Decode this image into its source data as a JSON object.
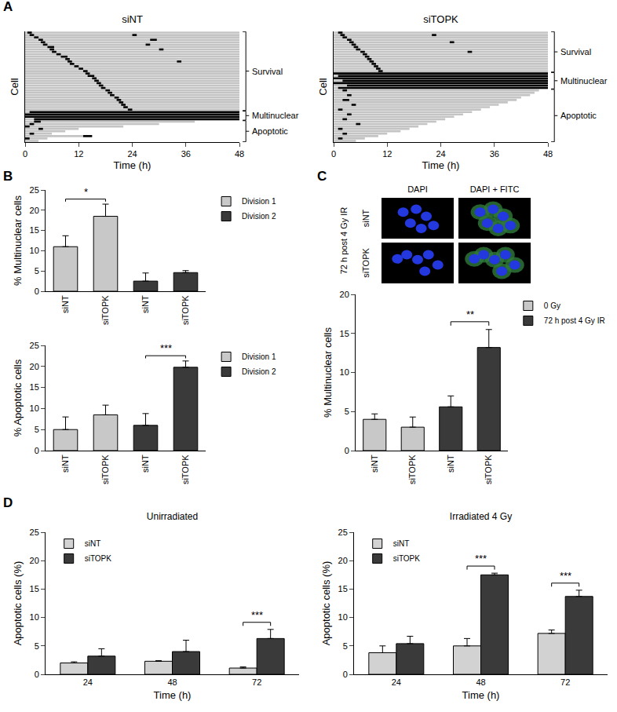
{
  "chart_data": [
    {
      "type": "timeline",
      "panel": "A",
      "title": "siNT",
      "xlabel": "Time (h)",
      "ylabel": "Cell",
      "xlim": [
        0,
        48
      ],
      "xticks": [
        0,
        12,
        24,
        36,
        48
      ],
      "grid": false,
      "tick_labels": "x",
      "color": "#c4c4c4",
      "groups": [
        {
          "label": "Survival",
          "from": 0,
          "to": 32
        },
        {
          "label": "Multinuclear",
          "from": 33,
          "to": 36
        },
        {
          "label": "Apoptotic",
          "from": 37,
          "to": 45
        }
      ],
      "cells": [
        {
          "end": 48,
          "marks": [
            [
              0.5,
              1.5
            ]
          ]
        },
        {
          "end": 48,
          "marks": [
            [
              1,
              2
            ],
            [
              24,
              25
            ]
          ]
        },
        {
          "end": 48,
          "marks": [
            [
              2,
              3
            ]
          ]
        },
        {
          "end": 48,
          "marks": [
            [
              3,
              4
            ],
            [
              28,
              29.5
            ]
          ]
        },
        {
          "end": 48,
          "marks": [
            [
              3.5,
              4.5
            ]
          ]
        },
        {
          "end": 48,
          "marks": [
            [
              4,
              5
            ],
            [
              27,
              28
            ]
          ]
        },
        {
          "end": 48,
          "marks": [
            [
              5,
              6.5
            ]
          ]
        },
        {
          "end": 48,
          "marks": [
            [
              5.5,
              6.5
            ],
            [
              30,
              31
            ]
          ]
        },
        {
          "end": 48,
          "marks": [
            [
              6,
              7
            ]
          ]
        },
        {
          "end": 48,
          "marks": [
            [
              7,
              8
            ]
          ]
        },
        {
          "end": 48,
          "marks": [
            [
              8,
              9.5
            ]
          ]
        },
        {
          "end": 48,
          "marks": [
            [
              9,
              10
            ]
          ]
        },
        {
          "end": 48,
          "marks": [
            [
              9.5,
              10.5
            ],
            [
              34,
              35
            ]
          ]
        },
        {
          "end": 48,
          "marks": [
            [
              10,
              11
            ]
          ]
        },
        {
          "end": 48,
          "marks": [
            [
              11,
              12
            ]
          ]
        },
        {
          "end": 48,
          "marks": [
            [
              12,
              13
            ]
          ]
        },
        {
          "end": 48,
          "marks": [
            [
              13,
              14
            ]
          ]
        },
        {
          "end": 48,
          "marks": [
            [
              13.5,
              14.5
            ]
          ]
        },
        {
          "end": 48,
          "marks": [
            [
              14,
              15.5
            ]
          ]
        },
        {
          "end": 48,
          "marks": [
            [
              15,
              16
            ]
          ]
        },
        {
          "end": 48,
          "marks": [
            [
              15.5,
              16.5
            ]
          ]
        },
        {
          "end": 48,
          "marks": [
            [
              16,
              17
            ]
          ]
        },
        {
          "end": 48,
          "marks": [
            [
              16.5,
              17.5
            ]
          ]
        },
        {
          "end": 48,
          "marks": [
            [
              17,
              18
            ]
          ]
        },
        {
          "end": 48,
          "marks": [
            [
              18,
              19
            ]
          ]
        },
        {
          "end": 48,
          "marks": [
            [
              18.5,
              19.5
            ]
          ]
        },
        {
          "end": 48,
          "marks": [
            [
              19,
              20
            ]
          ]
        },
        {
          "end": 48,
          "marks": [
            [
              20,
              21
            ]
          ]
        },
        {
          "end": 48,
          "marks": [
            [
              20.5,
              21.5
            ]
          ]
        },
        {
          "end": 48,
          "marks": [
            [
              21,
              22
            ]
          ]
        },
        {
          "end": 48,
          "marks": [
            [
              21.5,
              22.5
            ]
          ]
        },
        {
          "end": 48,
          "marks": [
            [
              22,
              23
            ]
          ]
        },
        {
          "end": 48,
          "marks": [
            [
              23,
              24
            ]
          ]
        },
        {
          "end": 48,
          "marks": [
            [
              1,
              48
            ]
          ]
        },
        {
          "end": 48,
          "marks": [
            [
              0,
              48
            ]
          ]
        },
        {
          "end": 48,
          "marks": [
            [
              0,
              48
            ]
          ]
        },
        {
          "end": 48,
          "marks": [
            [
              2,
              48
            ]
          ]
        },
        {
          "end": 38,
          "marks": [
            [
              2,
              3.5
            ]
          ]
        },
        {
          "end": 30,
          "marks": [
            [
              1,
              2
            ]
          ]
        },
        {
          "end": 22,
          "marks": [
            [
              0,
              1
            ]
          ]
        },
        {
          "end": 12,
          "marks": [
            [
              3,
              4
            ]
          ]
        },
        {
          "end": 9,
          "marks": []
        },
        {
          "end": 6,
          "marks": [
            [
              1,
              2
            ]
          ]
        },
        {
          "end": 15,
          "marks": [
            [
              13,
              15
            ]
          ]
        },
        {
          "end": 5,
          "marks": [
            [
              0,
              1
            ]
          ]
        },
        {
          "end": 3,
          "marks": []
        }
      ]
    },
    {
      "type": "timeline",
      "title": "siTOPK",
      "xlabel": "Time (h)",
      "ylabel": "Cell",
      "xlim": [
        0,
        48
      ],
      "xticks": [
        0,
        12,
        24,
        36,
        48
      ],
      "grid": false,
      "tick_labels": "x",
      "color": "#c4c4c4",
      "groups": [
        {
          "label": "Survival",
          "from": 0,
          "to": 16
        },
        {
          "label": "Multinuclear",
          "from": 17,
          "to": 23
        },
        {
          "label": "Apoptotic",
          "from": 24,
          "to": 45
        }
      ],
      "cells": [
        {
          "end": 48,
          "marks": [
            [
              1,
              2
            ]
          ]
        },
        {
          "end": 48,
          "marks": [
            [
              1.5,
              2.5
            ],
            [
              22,
              23
            ]
          ]
        },
        {
          "end": 48,
          "marks": [
            [
              2,
              3
            ]
          ]
        },
        {
          "end": 48,
          "marks": [
            [
              3,
              4
            ]
          ]
        },
        {
          "end": 48,
          "marks": [
            [
              3.5,
              4.5
            ],
            [
              26,
              27
            ]
          ]
        },
        {
          "end": 48,
          "marks": [
            [
              4,
              5
            ]
          ]
        },
        {
          "end": 48,
          "marks": [
            [
              4.5,
              5.5
            ]
          ]
        },
        {
          "end": 48,
          "marks": [
            [
              5,
              6
            ]
          ]
        },
        {
          "end": 48,
          "marks": [
            [
              6,
              7
            ],
            [
              30,
              31
            ]
          ]
        },
        {
          "end": 48,
          "marks": [
            [
              6.5,
              7.5
            ]
          ]
        },
        {
          "end": 48,
          "marks": [
            [
              7,
              8
            ]
          ]
        },
        {
          "end": 48,
          "marks": [
            [
              7.5,
              8.5
            ]
          ]
        },
        {
          "end": 48,
          "marks": [
            [
              8,
              9
            ]
          ]
        },
        {
          "end": 48,
          "marks": [
            [
              8.5,
              9.5
            ]
          ]
        },
        {
          "end": 48,
          "marks": [
            [
              9,
              10
            ]
          ]
        },
        {
          "end": 48,
          "marks": [
            [
              9.5,
              10.5
            ]
          ]
        },
        {
          "end": 48,
          "marks": [
            [
              10,
              11
            ]
          ]
        },
        {
          "end": 48,
          "marks": [
            [
              0,
              48
            ]
          ]
        },
        {
          "end": 48,
          "marks": [
            [
              1,
              48
            ]
          ]
        },
        {
          "end": 48,
          "marks": [
            [
              0,
              48
            ]
          ]
        },
        {
          "end": 48,
          "marks": [
            [
              2,
              48
            ]
          ]
        },
        {
          "end": 48,
          "marks": [
            [
              0,
              48
            ]
          ]
        },
        {
          "end": 48,
          "marks": [
            [
              3,
              48
            ]
          ]
        },
        {
          "end": 48,
          "marks": [
            [
              1,
              48
            ]
          ]
        },
        {
          "end": 46,
          "marks": [
            [
              2,
              3
            ]
          ]
        },
        {
          "end": 45,
          "marks": []
        },
        {
          "end": 44,
          "marks": [
            [
              3,
              4
            ]
          ]
        },
        {
          "end": 42,
          "marks": []
        },
        {
          "end": 41,
          "marks": [
            [
              2,
              3.5
            ]
          ]
        },
        {
          "end": 39,
          "marks": []
        },
        {
          "end": 37,
          "marks": [
            [
              4,
              5
            ]
          ]
        },
        {
          "end": 35,
          "marks": []
        },
        {
          "end": 33,
          "marks": [
            [
              1,
              2
            ]
          ]
        },
        {
          "end": 31,
          "marks": []
        },
        {
          "end": 29,
          "marks": [
            [
              3,
              4
            ]
          ]
        },
        {
          "end": 27,
          "marks": []
        },
        {
          "end": 25,
          "marks": [
            [
              2,
              3
            ]
          ]
        },
        {
          "end": 23,
          "marks": []
        },
        {
          "end": 21,
          "marks": [
            [
              5,
              6
            ]
          ]
        },
        {
          "end": 19,
          "marks": []
        },
        {
          "end": 17,
          "marks": [
            [
              1,
              2
            ]
          ]
        },
        {
          "end": 15,
          "marks": []
        },
        {
          "end": 12,
          "marks": [
            [
              2,
              3
            ]
          ]
        },
        {
          "end": 10,
          "marks": []
        },
        {
          "end": 7,
          "marks": [
            [
              1,
              2
            ]
          ]
        },
        {
          "end": 5,
          "marks": []
        }
      ]
    },
    {
      "type": "bar",
      "panel": "B",
      "ylabel": "% Multinuclear cells",
      "categories": [
        "siNT",
        "siTOPK",
        "siNT",
        "siTOPK"
      ],
      "ylim": [
        0,
        25
      ],
      "yticks": [
        0,
        5,
        10,
        15,
        20,
        25
      ],
      "grid": false,
      "legend": "right",
      "series": [
        {
          "name": "Division 1",
          "color": "#c8c8c8",
          "values": [
            11,
            18.5,
            null,
            null
          ],
          "errors": [
            2.7,
            3,
            null,
            null
          ]
        },
        {
          "name": "Division 2",
          "color": "#3a3a3a",
          "values": [
            null,
            null,
            2.5,
            4.6
          ],
          "errors": [
            null,
            null,
            2,
            0.5
          ]
        }
      ],
      "annotations": [
        {
          "text": "*",
          "between": [
            0,
            1
          ]
        }
      ]
    },
    {
      "type": "bar",
      "ylabel": "% Apoptotic cells",
      "categories": [
        "siNT",
        "siTOPK",
        "siNT",
        "siTOPK"
      ],
      "ylim": [
        0,
        25
      ],
      "yticks": [
        0,
        5,
        10,
        15,
        20,
        25
      ],
      "grid": false,
      "legend": "right",
      "series": [
        {
          "name": "Division 1",
          "color": "#c8c8c8",
          "values": [
            5,
            8.5,
            null,
            null
          ],
          "errors": [
            3,
            2.3,
            null,
            null
          ]
        },
        {
          "name": "Division 2",
          "color": "#3a3a3a",
          "values": [
            null,
            null,
            6,
            19.8
          ],
          "errors": [
            null,
            null,
            2.8,
            1.5
          ]
        }
      ],
      "annotations": [
        {
          "text": "***",
          "between": [
            2,
            3
          ]
        }
      ]
    },
    {
      "type": "bar",
      "ylabel": "% Multinuclear cells",
      "categories": [
        "siNT",
        "siTOPK",
        "siNT",
        "siTOPK"
      ],
      "ylim": [
        0,
        20
      ],
      "yticks": [
        0,
        5,
        10,
        15,
        20
      ],
      "grid": false,
      "legend": "right",
      "series": [
        {
          "name": "0 Gy",
          "color": "#c8c8c8",
          "values": [
            4,
            3,
            null,
            null
          ],
          "errors": [
            0.7,
            1.3,
            null,
            null
          ]
        },
        {
          "name": "72 h post 4 Gy IR",
          "color": "#3a3a3a",
          "values": [
            null,
            null,
            5.6,
            13.2
          ],
          "errors": [
            null,
            null,
            1.4,
            2.3
          ]
        }
      ],
      "annotations": [
        {
          "text": "**",
          "between": [
            2,
            3
          ]
        }
      ]
    },
    {
      "type": "bar",
      "panel": "D",
      "title": "Unirradiated",
      "xlabel": "Time (h)",
      "ylabel": "Apoptotic cells (%)",
      "categories": [
        "24",
        "48",
        "72"
      ],
      "ylim": [
        0,
        25
      ],
      "yticks": [
        0,
        5,
        10,
        15,
        20,
        25
      ],
      "grid": false,
      "legend": "top left",
      "series": [
        {
          "name": "siNT",
          "color": "#d2d2d2",
          "values": [
            2,
            2.3,
            1.1
          ],
          "errors": [
            0.2,
            0.1,
            0.2
          ]
        },
        {
          "name": "siTOPK",
          "color": "#3a3a3a",
          "values": [
            3.2,
            4,
            6.3
          ],
          "errors": [
            1.3,
            2,
            1.6
          ]
        }
      ],
      "annotations": [
        {
          "text": "***",
          "category": 2
        }
      ]
    },
    {
      "type": "bar",
      "title": "Irradiated 4 Gy",
      "xlabel": "Time (h)",
      "ylabel": "Apoptotic cells (%)",
      "categories": [
        "24",
        "48",
        "72"
      ],
      "ylim": [
        0,
        25
      ],
      "yticks": [
        0,
        5,
        10,
        15,
        20,
        25
      ],
      "grid": false,
      "legend": "top left",
      "series": [
        {
          "name": "siNT",
          "color": "#d2d2d2",
          "values": [
            3.8,
            5,
            7.2
          ],
          "errors": [
            1.2,
            1.3,
            0.6
          ]
        },
        {
          "name": "siTOPK",
          "color": "#3a3a3a",
          "values": [
            5.4,
            17.5,
            13.7
          ],
          "errors": [
            1.3,
            0.3,
            1.1
          ]
        }
      ],
      "annotations": [
        {
          "text": "***",
          "category": 1
        },
        {
          "text": "***",
          "category": 2
        }
      ]
    }
  ],
  "panel_c_images": {
    "panel": "C",
    "condition": "72 h post 4 Gy IR",
    "rows": [
      "siNT",
      "siTOPK"
    ],
    "columns": [
      "DAPI",
      "DAPI + FITC"
    ]
  }
}
